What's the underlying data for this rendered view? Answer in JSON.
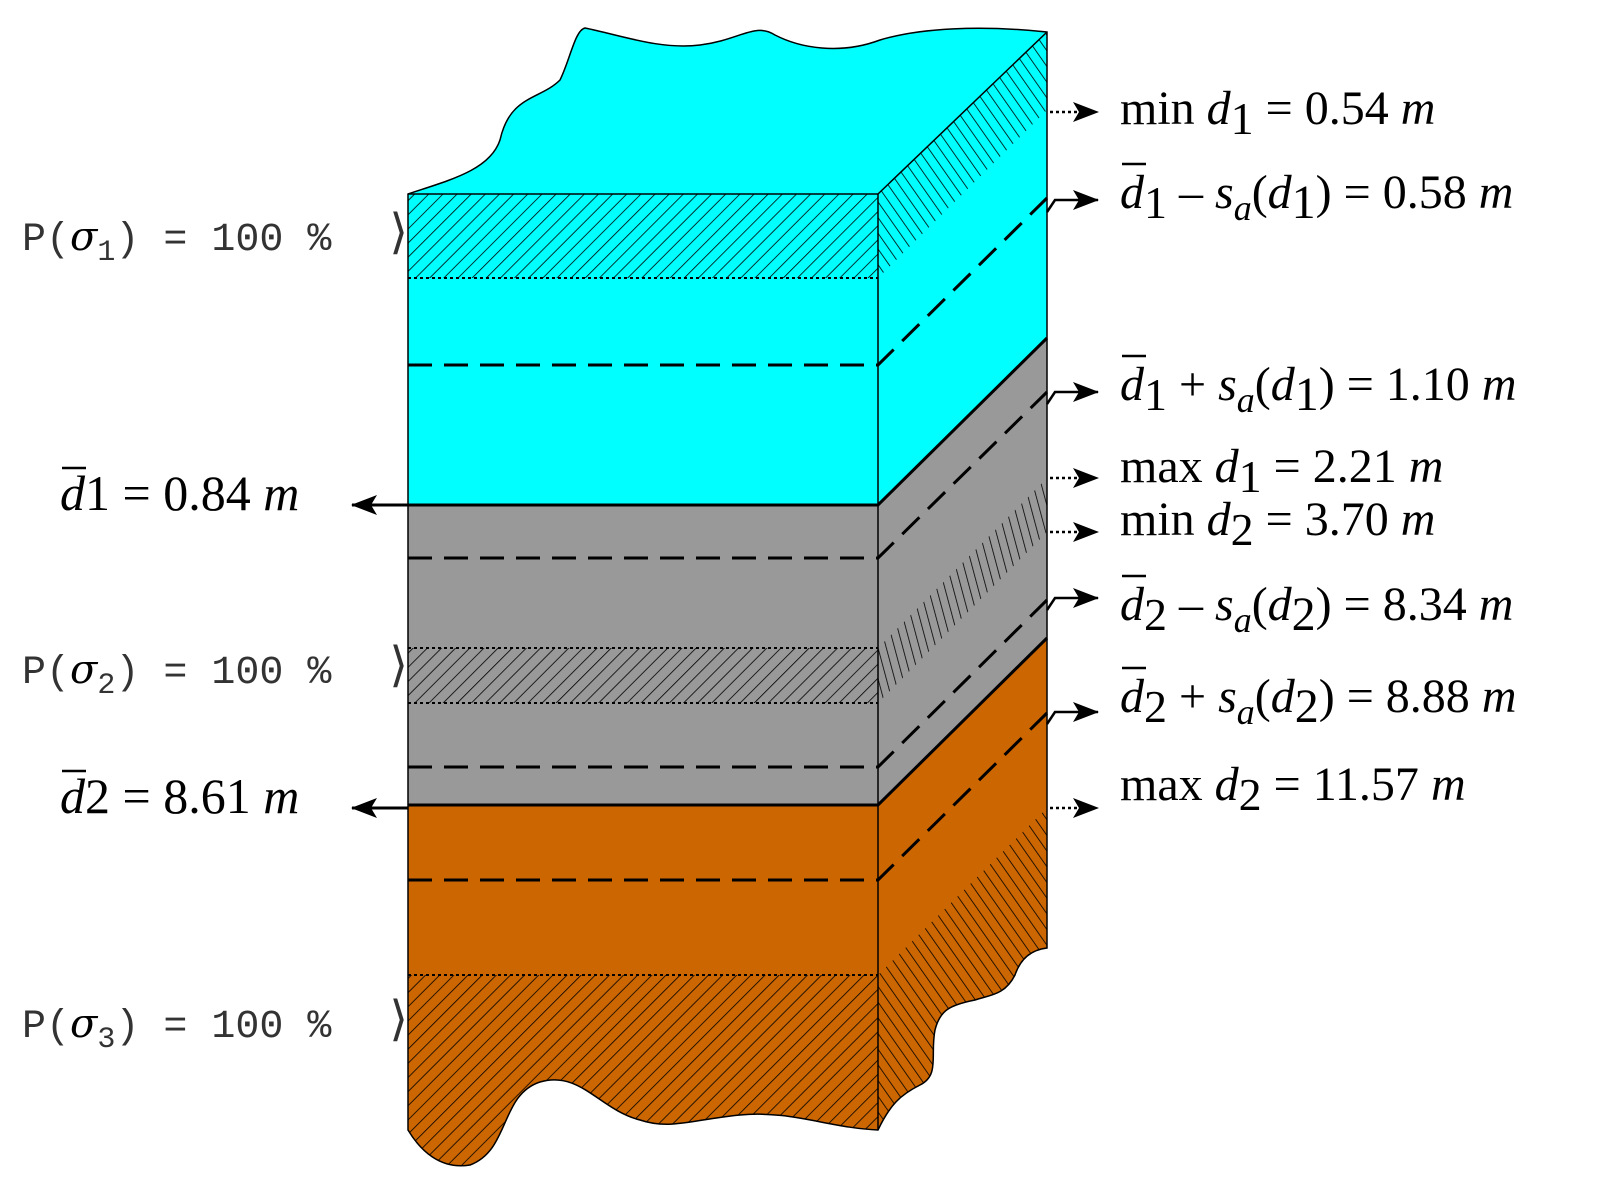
{
  "colors": {
    "water": "#00FFFF",
    "silt": "#999999",
    "bedrock": "#CC6600",
    "line": "#000000",
    "prob_text": "#333333"
  },
  "layers": [
    {
      "name": "layer-1",
      "color_key": "water"
    },
    {
      "name": "layer-2",
      "color_key": "silt"
    },
    {
      "name": "layer-3",
      "color_key": "bedrock"
    }
  ],
  "probability_labels": [
    {
      "prefix": "P(",
      "sigma": "σ",
      "sub": "1",
      "suffix": ")  =  100 %",
      "bracket": "⟩"
    },
    {
      "prefix": "P(",
      "sigma": "σ",
      "sub": "2",
      "suffix": ")  =  100 %",
      "bracket": "⟩"
    },
    {
      "prefix": "P(",
      "sigma": "σ",
      "sub": "3",
      "suffix": ")  =  100 %",
      "bracket": "⟩"
    }
  ],
  "mean_depths": [
    {
      "var": "d",
      "sub": "1",
      "eq": " = 0.84",
      "unit": "m"
    },
    {
      "var": "d",
      "sub": "2",
      "eq": " = 8.61",
      "unit": "m"
    }
  ],
  "right_labels": [
    {
      "pre": "min",
      "var": "d",
      "sub": "1",
      "mid": "",
      "s_sub": "",
      "arg_sub": "",
      "eq": " = 0.54",
      "unit": "m",
      "bar": false,
      "arrow": "dotted"
    },
    {
      "pre": "",
      "var": "d",
      "sub": "1",
      "mid": " – s",
      "s_sub": "a",
      "arg_sub": "1",
      "eq": " = 0.58",
      "unit": "m",
      "bar": true,
      "arrow": "solid"
    },
    {
      "pre": "",
      "var": "d",
      "sub": "1",
      "mid": " + s",
      "s_sub": "a",
      "arg_sub": "1",
      "eq": " = 1.10",
      "unit": "m",
      "bar": true,
      "arrow": "solid"
    },
    {
      "pre": "max",
      "var": "d",
      "sub": "1",
      "mid": "",
      "s_sub": "",
      "arg_sub": "",
      "eq": " = 2.21",
      "unit": "m",
      "bar": false,
      "arrow": "dotted"
    },
    {
      "pre": "min",
      "var": "d",
      "sub": "2",
      "mid": "",
      "s_sub": "",
      "arg_sub": "",
      "eq": " = 3.70",
      "unit": "m",
      "bar": false,
      "arrow": "dotted"
    },
    {
      "pre": "",
      "var": "d",
      "sub": "2",
      "mid": " – s",
      "s_sub": "a",
      "arg_sub": "2",
      "eq": " = 8.34",
      "unit": "m",
      "bar": true,
      "arrow": "solid"
    },
    {
      "pre": "",
      "var": "d",
      "sub": "2",
      "mid": " + s",
      "s_sub": "a",
      "arg_sub": "2",
      "eq": " = 8.88",
      "unit": "m",
      "bar": true,
      "arrow": "solid"
    },
    {
      "pre": "max",
      "var": "d",
      "sub": "2",
      "mid": "",
      "s_sub": "",
      "arg_sub": "",
      "eq": " = 11.57",
      "unit": "m",
      "bar": false,
      "arrow": "dotted"
    }
  ]
}
